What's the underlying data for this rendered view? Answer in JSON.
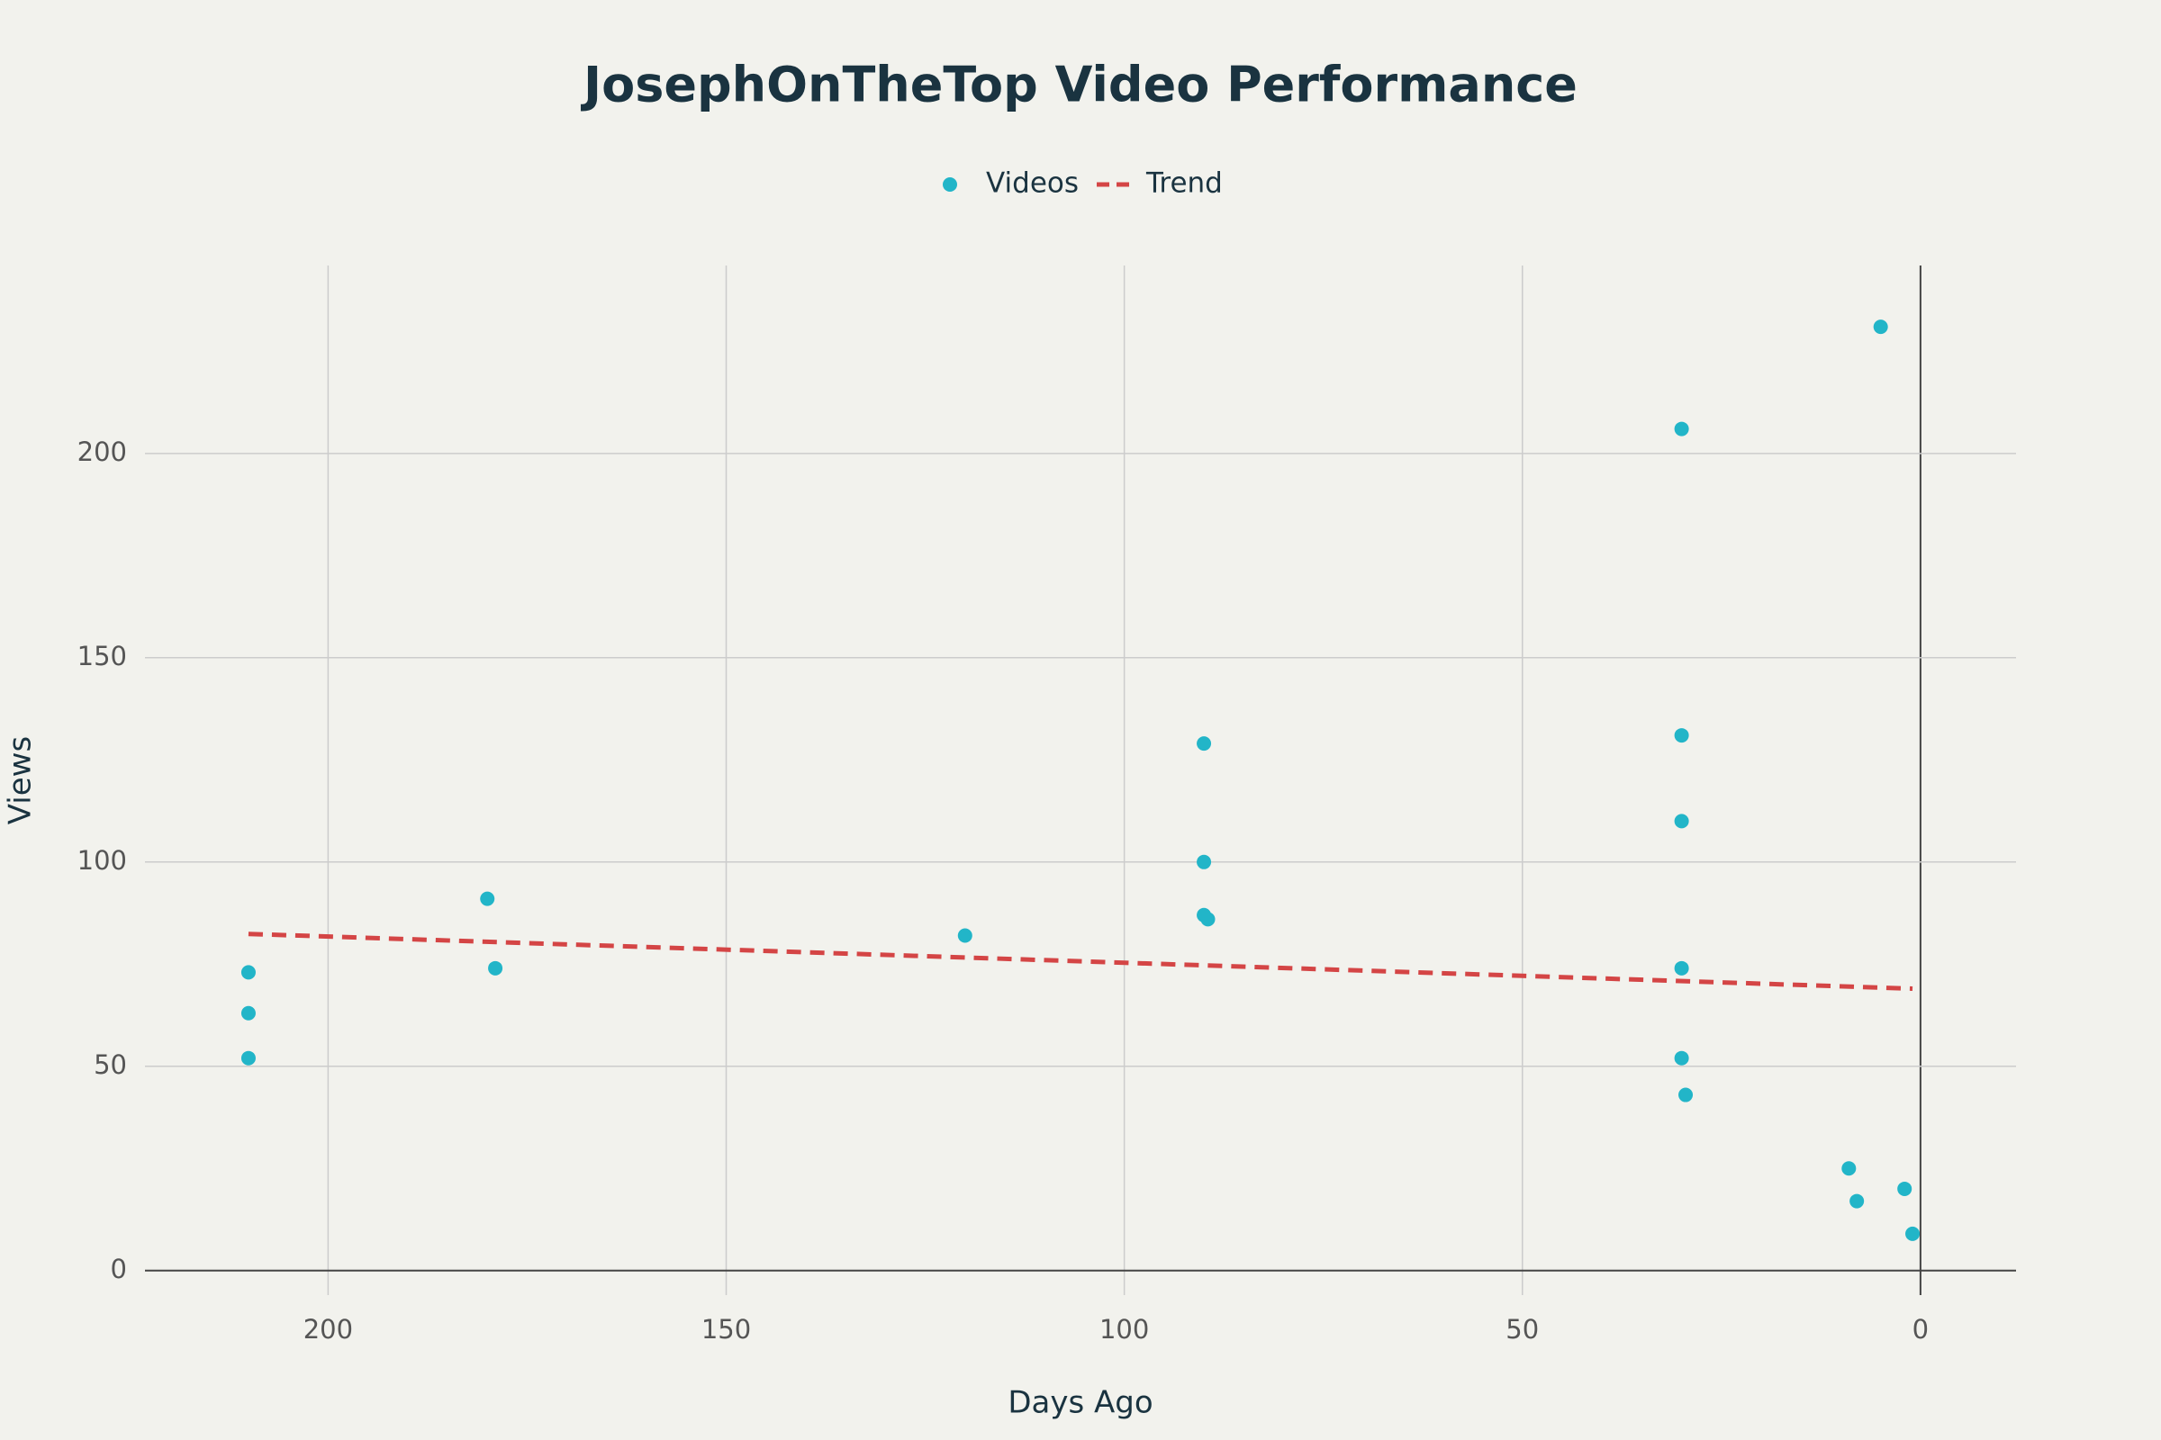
{
  "chart_data": {
    "type": "scatter",
    "title": "JosephOnTheTop Video Performance",
    "x_label": "Days Ago",
    "y_label": "Views",
    "xlim": [
      223,
      -12
    ],
    "xticks": [
      200,
      150,
      100,
      50,
      0
    ],
    "ylim": [
      -6,
      246
    ],
    "yticks": [
      0,
      50,
      100,
      150,
      200
    ],
    "grid": true,
    "legend": "top",
    "series": [
      {
        "name": "Videos",
        "color": "#22b5c8",
        "mode": "markers",
        "x": [
          210,
          210,
          210,
          180,
          179,
          120,
          90,
          90,
          90,
          89.5,
          30,
          30,
          30,
          30,
          30,
          29.5,
          5,
          9,
          8,
          2,
          1
        ],
        "values": [
          73,
          63,
          52,
          91,
          74,
          82,
          129,
          100,
          87,
          86,
          131,
          206,
          110,
          74,
          52,
          43,
          231,
          25,
          17,
          20,
          9
        ]
      },
      {
        "name": "Trend",
        "color": "#d44545",
        "mode": "dash",
        "x": [
          210,
          1
        ],
        "values": [
          82.4,
          69
        ]
      }
    ]
  }
}
